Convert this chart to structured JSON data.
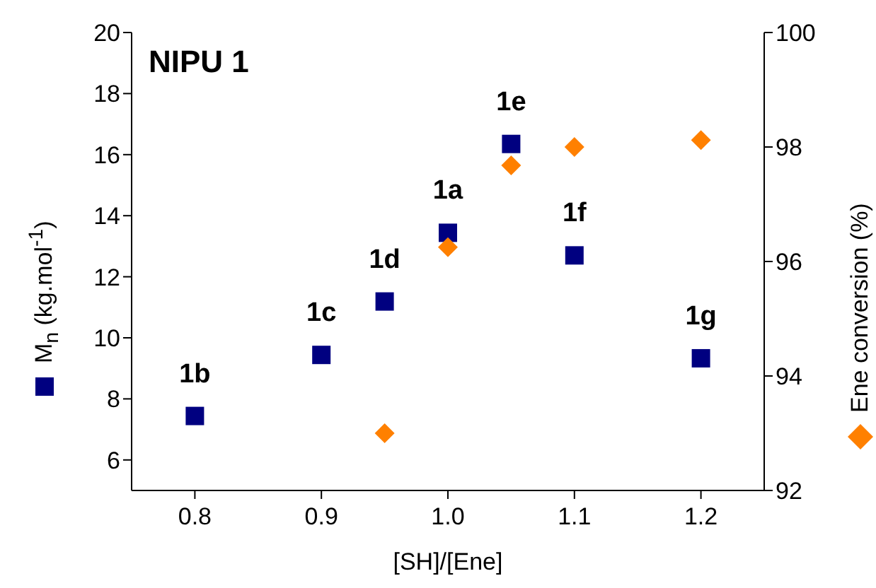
{
  "chart_data": {
    "type": "scatter",
    "xlabel": "[SH]/[Ene]",
    "ylabel": "M$_{n}$ (kg.mol$^{-1}$)",
    "y2label": "Ene conversion (%)",
    "x": [
      0.8,
      0.9,
      0.95,
      1.0,
      1.05,
      1.1,
      1.2
    ],
    "series": [
      {
        "color": "#000080",
        "marker": "square",
        "values": [
          7.44,
          9.44,
          11.19,
          13.44,
          16.35,
          12.7,
          9.33
        ]
      },
      {
        "color": "#ff8000",
        "marker": "diamond",
        "axis": "y2",
        "values": [
          null,
          null,
          93.0,
          96.25,
          97.68,
          98.0,
          98.12
        ]
      }
    ],
    "xlim": [
      0.75,
      1.25
    ],
    "xticks": [
      0.8,
      0.9,
      {
        "value": 1.0,
        "label": "1.0"
      },
      1.1,
      1.2
    ],
    "ylim": [
      5,
      20
    ],
    "yticks": [
      6,
      8,
      10,
      12,
      14,
      16,
      18,
      20
    ],
    "y2lim": [
      92,
      100
    ],
    "y2ticks": [
      92,
      94,
      96,
      98,
      100
    ],
    "grid": false,
    "legend": false,
    "annotations": [
      "NIPU 1",
      {
        "text": "1b",
        "x": 0.8,
        "y": 7.44
      },
      {
        "text": "1c",
        "x": 0.9,
        "y": 9.44
      },
      {
        "text": "1d",
        "x": 0.95,
        "y": 11.19
      },
      {
        "text": "1a",
        "x": 1.0,
        "y": 13.44
      },
      {
        "text": "1e",
        "x": 1.05,
        "y": 16.35
      },
      {
        "text": "1f",
        "x": 1.1,
        "y": 12.7
      },
      {
        "text": "1g",
        "x": 1.2,
        "y": 9.33
      }
    ]
  }
}
